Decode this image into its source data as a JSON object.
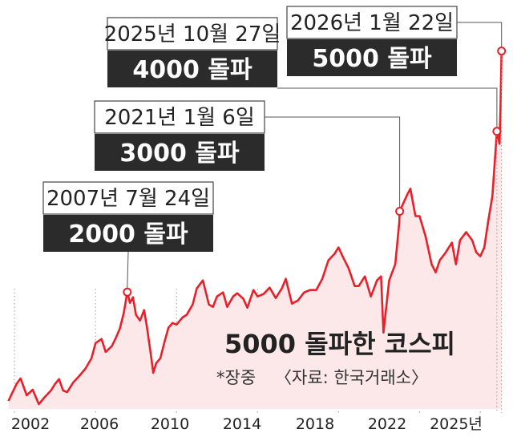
{
  "chart_data": {
    "type": "area",
    "title": "5000 돌파한 코스피",
    "note": "*장중",
    "source": "〈자료: 한국거래소〉",
    "x_ticks": [
      "2002",
      "2006",
      "2010",
      "2014",
      "2018",
      "2022",
      "2025년"
    ],
    "xlim": [
      2001.6,
      2026.3
    ],
    "ylim": [
      550,
      5400
    ],
    "colors": {
      "line": "#e8202a",
      "fill": "#fce8e8",
      "box_dark": "#2b2b2b",
      "grid": "#9a9a9a"
    },
    "series": [
      {
        "points": [
          [
            2001.7,
            650
          ],
          [
            2002.1,
            860
          ],
          [
            2002.3,
            930
          ],
          [
            2002.6,
            720
          ],
          [
            2002.9,
            790
          ],
          [
            2003.2,
            610
          ],
          [
            2003.5,
            700
          ],
          [
            2003.8,
            780
          ],
          [
            2004.0,
            860
          ],
          [
            2004.2,
            920
          ],
          [
            2004.4,
            780
          ],
          [
            2004.6,
            760
          ],
          [
            2004.9,
            880
          ],
          [
            2005.2,
            960
          ],
          [
            2005.5,
            1050
          ],
          [
            2005.8,
            1180
          ],
          [
            2006.0,
            1370
          ],
          [
            2006.3,
            1420
          ],
          [
            2006.5,
            1260
          ],
          [
            2006.8,
            1330
          ],
          [
            2007.0,
            1430
          ],
          [
            2007.2,
            1550
          ],
          [
            2007.4,
            1750
          ],
          [
            2007.57,
            2004
          ],
          [
            2007.7,
            1870
          ],
          [
            2007.85,
            1940
          ],
          [
            2008.0,
            1720
          ],
          [
            2008.2,
            1650
          ],
          [
            2008.4,
            1780
          ],
          [
            2008.55,
            1550
          ],
          [
            2008.75,
            1200
          ],
          [
            2008.85,
            1000
          ],
          [
            2009.0,
            1120
          ],
          [
            2009.2,
            1180
          ],
          [
            2009.4,
            1380
          ],
          [
            2009.6,
            1560
          ],
          [
            2009.8,
            1620
          ],
          [
            2010.0,
            1600
          ],
          [
            2010.3,
            1690
          ],
          [
            2010.5,
            1720
          ],
          [
            2010.8,
            1850
          ],
          [
            2011.0,
            2050
          ],
          [
            2011.3,
            2150
          ],
          [
            2011.6,
            1850
          ],
          [
            2011.8,
            1820
          ],
          [
            2012.0,
            1950
          ],
          [
            2012.3,
            2000
          ],
          [
            2012.5,
            1820
          ],
          [
            2012.8,
            1950
          ],
          [
            2013.0,
            1990
          ],
          [
            2013.3,
            1920
          ],
          [
            2013.5,
            1810
          ],
          [
            2013.8,
            2030
          ],
          [
            2014.0,
            1950
          ],
          [
            2014.3,
            1980
          ],
          [
            2014.6,
            2060
          ],
          [
            2014.9,
            1930
          ],
          [
            2015.2,
            2050
          ],
          [
            2015.4,
            2170
          ],
          [
            2015.7,
            1860
          ],
          [
            2016.0,
            1900
          ],
          [
            2016.3,
            2000
          ],
          [
            2016.6,
            2030
          ],
          [
            2016.9,
            2030
          ],
          [
            2017.2,
            2170
          ],
          [
            2017.5,
            2400
          ],
          [
            2017.8,
            2480
          ],
          [
            2018.0,
            2560
          ],
          [
            2018.2,
            2450
          ],
          [
            2018.5,
            2300
          ],
          [
            2018.8,
            2080
          ],
          [
            2019.0,
            2080
          ],
          [
            2019.3,
            2200
          ],
          [
            2019.6,
            1950
          ],
          [
            2019.9,
            2150
          ],
          [
            2020.1,
            2200
          ],
          [
            2020.22,
            1500
          ],
          [
            2020.5,
            2150
          ],
          [
            2020.8,
            2350
          ],
          [
            2021.0,
            2870
          ],
          [
            2021.02,
            3010
          ],
          [
            2021.4,
            3220
          ],
          [
            2021.55,
            3290
          ],
          [
            2021.8,
            2950
          ],
          [
            2022.0,
            2950
          ],
          [
            2022.3,
            2700
          ],
          [
            2022.6,
            2350
          ],
          [
            2022.8,
            2250
          ],
          [
            2023.0,
            2400
          ],
          [
            2023.3,
            2500
          ],
          [
            2023.6,
            2620
          ],
          [
            2023.8,
            2350
          ],
          [
            2024.0,
            2650
          ],
          [
            2024.3,
            2750
          ],
          [
            2024.6,
            2650
          ],
          [
            2024.8,
            2500
          ],
          [
            2025.0,
            2450
          ],
          [
            2025.2,
            2560
          ],
          [
            2025.4,
            2900
          ],
          [
            2025.6,
            3200
          ],
          [
            2025.82,
            4005
          ],
          [
            2025.95,
            3850
          ],
          [
            2026.0,
            4300
          ],
          [
            2026.05,
            5005
          ]
        ]
      }
    ],
    "milestones": [
      {
        "date": "2007년 7월 24일",
        "label": "2000 돌파",
        "x": 2007.57,
        "y": 2004
      },
      {
        "date": "2021년 1월 6일",
        "label": "3000 돌파",
        "x": 2021.02,
        "y": 3010
      },
      {
        "date": "2025년 10월 27일",
        "label": "4000 돌파",
        "x": 2025.82,
        "y": 4005
      },
      {
        "date": "2026년 1월 22일",
        "label": "5000 돌파",
        "x": 2026.05,
        "y": 5005
      }
    ]
  }
}
